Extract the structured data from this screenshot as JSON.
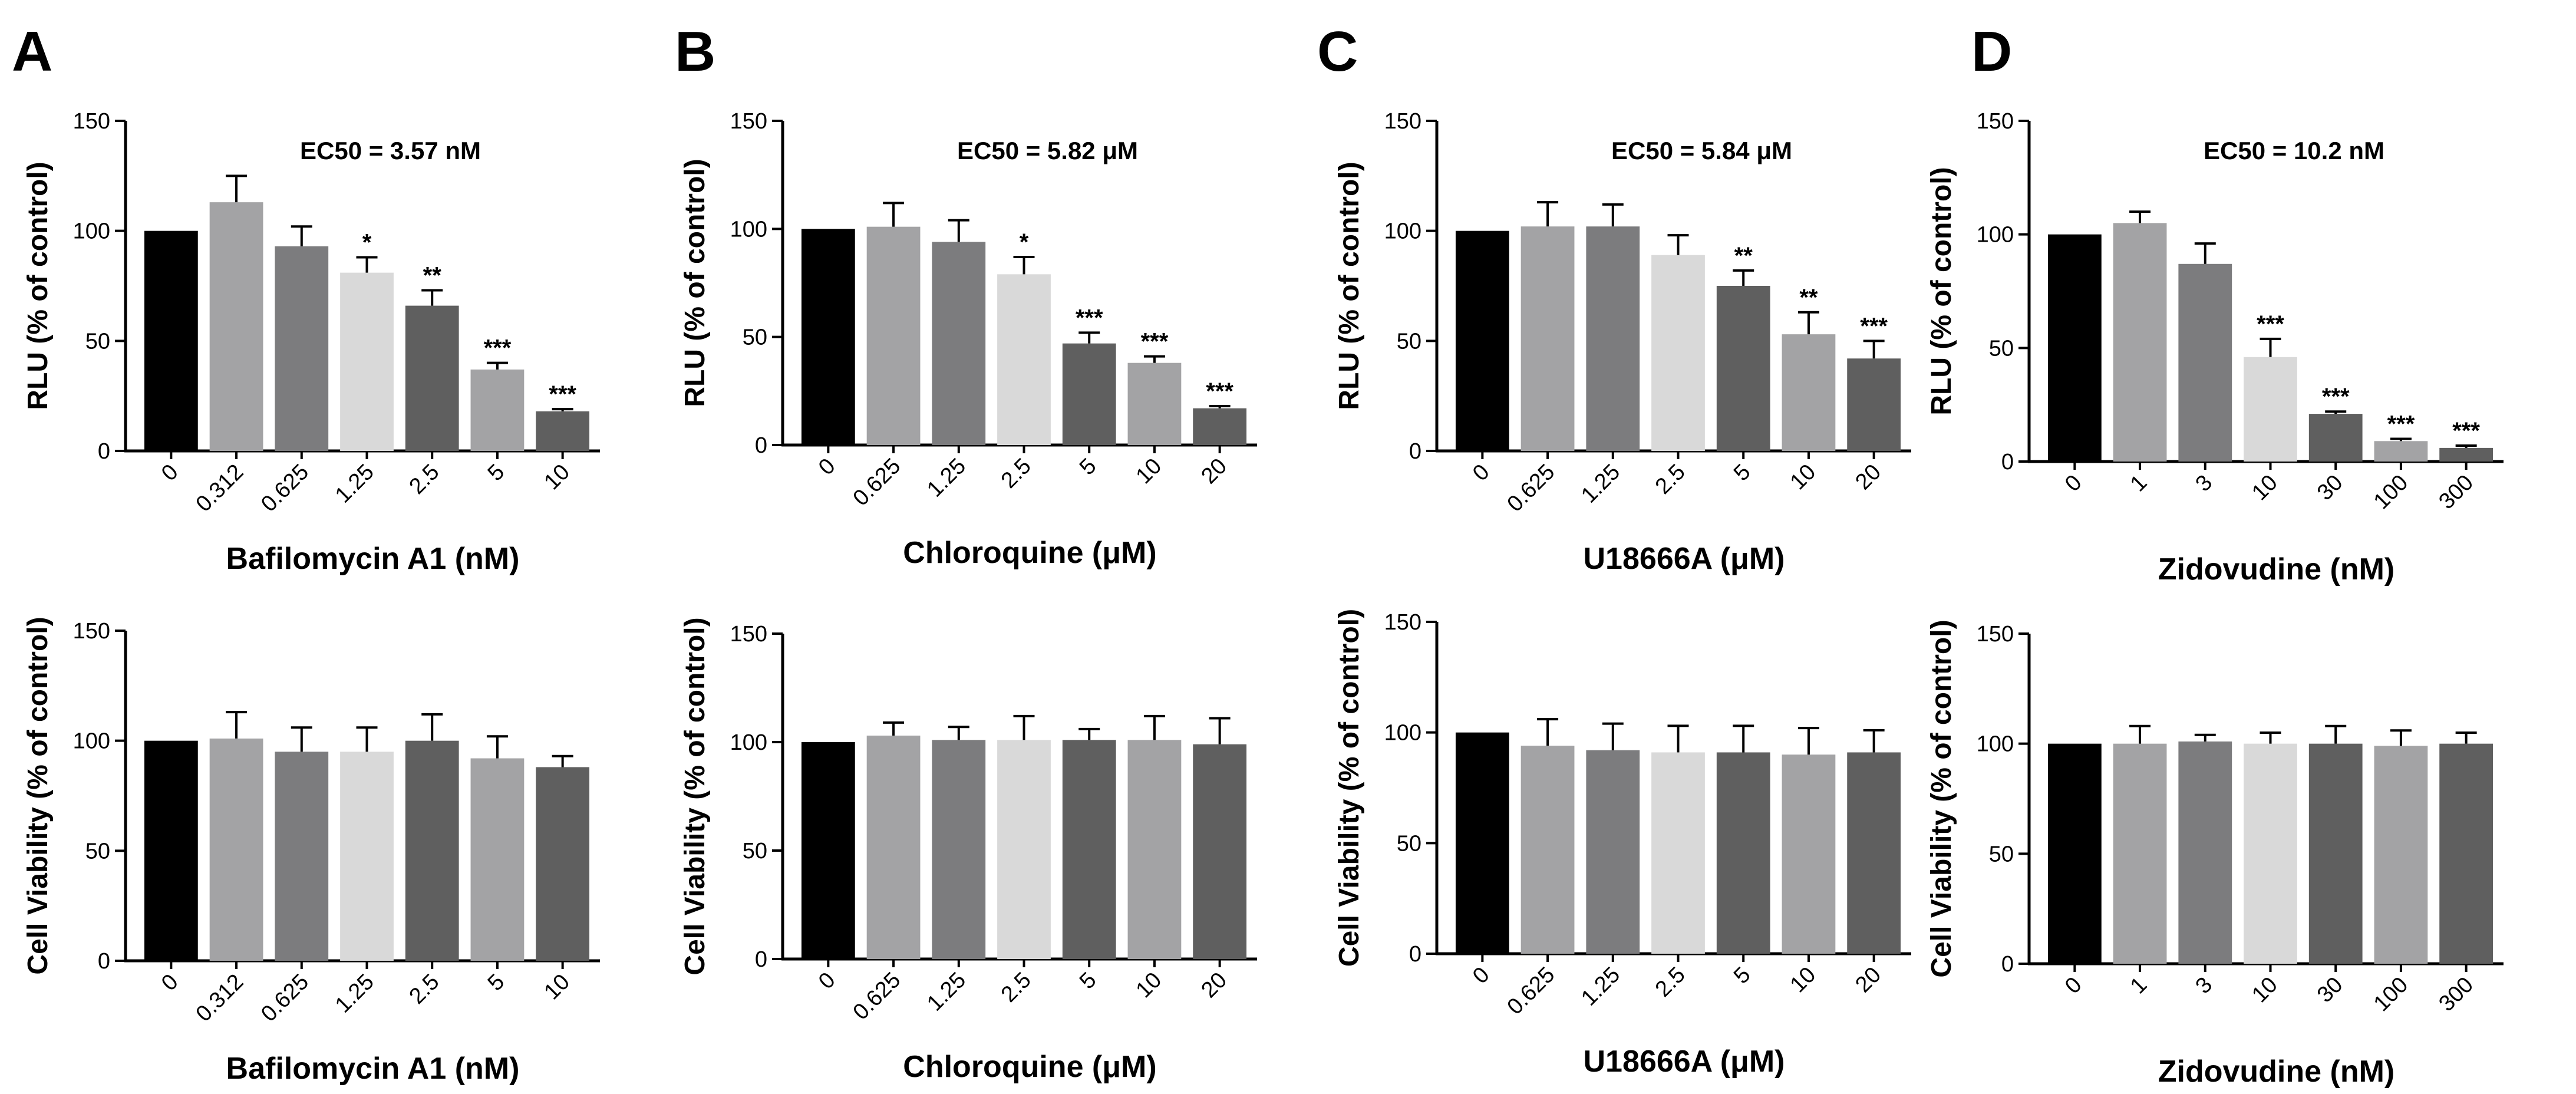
{
  "chart_data": [
    {
      "id": "A-top",
      "panel": "A",
      "type": "bar",
      "title": "EC50 = 3.57 nM",
      "xlabel": "Bafilomycin A1 (nM)",
      "ylabel": "RLU (% of control)",
      "ylim": [
        0,
        150
      ],
      "yticks": [
        0,
        50,
        100,
        150
      ],
      "categories": [
        "0",
        "0.312",
        "0.625",
        "1.25",
        "2.5",
        "5",
        "10"
      ],
      "values": [
        100,
        113,
        93,
        81,
        66,
        37,
        18
      ],
      "errors": [
        0,
        12,
        9,
        7,
        7,
        3,
        1
      ],
      "significance": [
        "",
        "",
        "",
        "*",
        "**",
        "***",
        "***"
      ],
      "colors": [
        "#000000",
        "#a3a3a5",
        "#7c7c7e",
        "#d9d9d9",
        "#5f5f5f",
        "#a3a3a5",
        "#5f5f5f"
      ]
    },
    {
      "id": "B-top",
      "panel": "B",
      "type": "bar",
      "title": "EC50 = 5.82 μM",
      "xlabel": "Chloroquine (μM)",
      "ylabel": "RLU (% of control)",
      "ylim": [
        0,
        150
      ],
      "yticks": [
        0,
        50,
        100,
        150
      ],
      "categories": [
        "0",
        "0.625",
        "1.25",
        "2.5",
        "5",
        "10",
        "20"
      ],
      "values": [
        100,
        101,
        94,
        79,
        47,
        38,
        17
      ],
      "errors": [
        0,
        11,
        10,
        8,
        5,
        3,
        1
      ],
      "significance": [
        "",
        "",
        "",
        "*",
        "***",
        "***",
        "***"
      ],
      "colors": [
        "#000000",
        "#a3a3a5",
        "#7c7c7e",
        "#d9d9d9",
        "#5f5f5f",
        "#a3a3a5",
        "#5f5f5f"
      ]
    },
    {
      "id": "C-top",
      "panel": "C",
      "type": "bar",
      "title": "EC50 = 5.84 μM",
      "xlabel": "U18666A (μM)",
      "ylabel": "RLU (% of control)",
      "ylim": [
        0,
        150
      ],
      "yticks": [
        0,
        50,
        100,
        150
      ],
      "categories": [
        "0",
        "0.625",
        "1.25",
        "2.5",
        "5",
        "10",
        "20"
      ],
      "values": [
        100,
        102,
        102,
        89,
        75,
        53,
        42
      ],
      "errors": [
        0,
        11,
        10,
        9,
        7,
        10,
        8
      ],
      "significance": [
        "",
        "",
        "",
        "",
        "**",
        "**",
        "***"
      ],
      "colors": [
        "#000000",
        "#a3a3a5",
        "#7c7c7e",
        "#d9d9d9",
        "#5f5f5f",
        "#a3a3a5",
        "#5f5f5f"
      ]
    },
    {
      "id": "D-top",
      "panel": "D",
      "type": "bar",
      "title": "EC50 = 10.2 nM",
      "xlabel": "Zidovudine (nM)",
      "ylabel": "RLU (% of control)",
      "ylim": [
        0,
        150
      ],
      "yticks": [
        0,
        50,
        100,
        150
      ],
      "categories": [
        "0",
        "1",
        "3",
        "10",
        "30",
        "100",
        "300"
      ],
      "values": [
        100,
        105,
        87,
        46,
        21,
        9,
        6
      ],
      "errors": [
        0,
        5,
        9,
        8,
        1,
        1,
        1
      ],
      "significance": [
        "",
        "",
        "",
        "***",
        "***",
        "***",
        "***"
      ],
      "colors": [
        "#000000",
        "#a3a3a5",
        "#7c7c7e",
        "#d9d9d9",
        "#5f5f5f",
        "#a3a3a5",
        "#5f5f5f"
      ]
    },
    {
      "id": "A-bottom",
      "panel": "A",
      "type": "bar",
      "title": "",
      "xlabel": "Bafilomycin A1 (nM)",
      "ylabel": "Cell Viability (% of control)",
      "ylim": [
        0,
        150
      ],
      "yticks": [
        0,
        50,
        100,
        150
      ],
      "categories": [
        "0",
        "0.312",
        "0.625",
        "1.25",
        "2.5",
        "5",
        "10"
      ],
      "values": [
        100,
        101,
        95,
        95,
        100,
        92,
        88
      ],
      "errors": [
        0,
        12,
        11,
        11,
        12,
        10,
        5
      ],
      "significance": [
        "",
        "",
        "",
        "",
        "",
        "",
        ""
      ],
      "colors": [
        "#000000",
        "#a3a3a5",
        "#7c7c7e",
        "#d9d9d9",
        "#5f5f5f",
        "#a3a3a5",
        "#5f5f5f"
      ]
    },
    {
      "id": "B-bottom",
      "panel": "B",
      "type": "bar",
      "title": "",
      "xlabel": "Chloroquine (μM)",
      "ylabel": "Cell Viability (% of control)",
      "ylim": [
        0,
        150
      ],
      "yticks": [
        0,
        50,
        100,
        150
      ],
      "categories": [
        "0",
        "0.625",
        "1.25",
        "2.5",
        "5",
        "10",
        "20"
      ],
      "values": [
        100,
        103,
        101,
        101,
        101,
        101,
        99
      ],
      "errors": [
        0,
        6,
        6,
        11,
        5,
        11,
        12
      ],
      "significance": [
        "",
        "",
        "",
        "",
        "",
        "",
        ""
      ],
      "colors": [
        "#000000",
        "#a3a3a5",
        "#7c7c7e",
        "#d9d9d9",
        "#5f5f5f",
        "#a3a3a5",
        "#5f5f5f"
      ]
    },
    {
      "id": "C-bottom",
      "panel": "C",
      "type": "bar",
      "title": "",
      "xlabel": "U18666A (μM)",
      "ylabel": "Cell Viability (% of control)",
      "ylim": [
        0,
        150
      ],
      "yticks": [
        0,
        50,
        100,
        150
      ],
      "categories": [
        "0",
        "0.625",
        "1.25",
        "2.5",
        "5",
        "10",
        "20"
      ],
      "values": [
        100,
        94,
        92,
        91,
        91,
        90,
        91
      ],
      "errors": [
        0,
        12,
        12,
        12,
        12,
        12,
        10
      ],
      "significance": [
        "",
        "",
        "",
        "",
        "",
        "",
        ""
      ],
      "colors": [
        "#000000",
        "#a3a3a5",
        "#7c7c7e",
        "#d9d9d9",
        "#5f5f5f",
        "#a3a3a5",
        "#5f5f5f"
      ]
    },
    {
      "id": "D-bottom",
      "panel": "D",
      "type": "bar",
      "title": "",
      "xlabel": "Zidovudine (nM)",
      "ylabel": "Cell Viability (% of control)",
      "ylim": [
        0,
        150
      ],
      "yticks": [
        0,
        50,
        100,
        150
      ],
      "categories": [
        "0",
        "1",
        "3",
        "10",
        "30",
        "100",
        "300"
      ],
      "values": [
        100,
        100,
        101,
        100,
        100,
        99,
        100
      ],
      "errors": [
        0,
        8,
        3,
        5,
        8,
        7,
        5
      ],
      "significance": [
        "",
        "",
        "",
        "",
        "",
        "",
        ""
      ],
      "colors": [
        "#000000",
        "#a3a3a5",
        "#7c7c7e",
        "#d9d9d9",
        "#5f5f5f",
        "#a3a3a5",
        "#5f5f5f"
      ]
    }
  ]
}
